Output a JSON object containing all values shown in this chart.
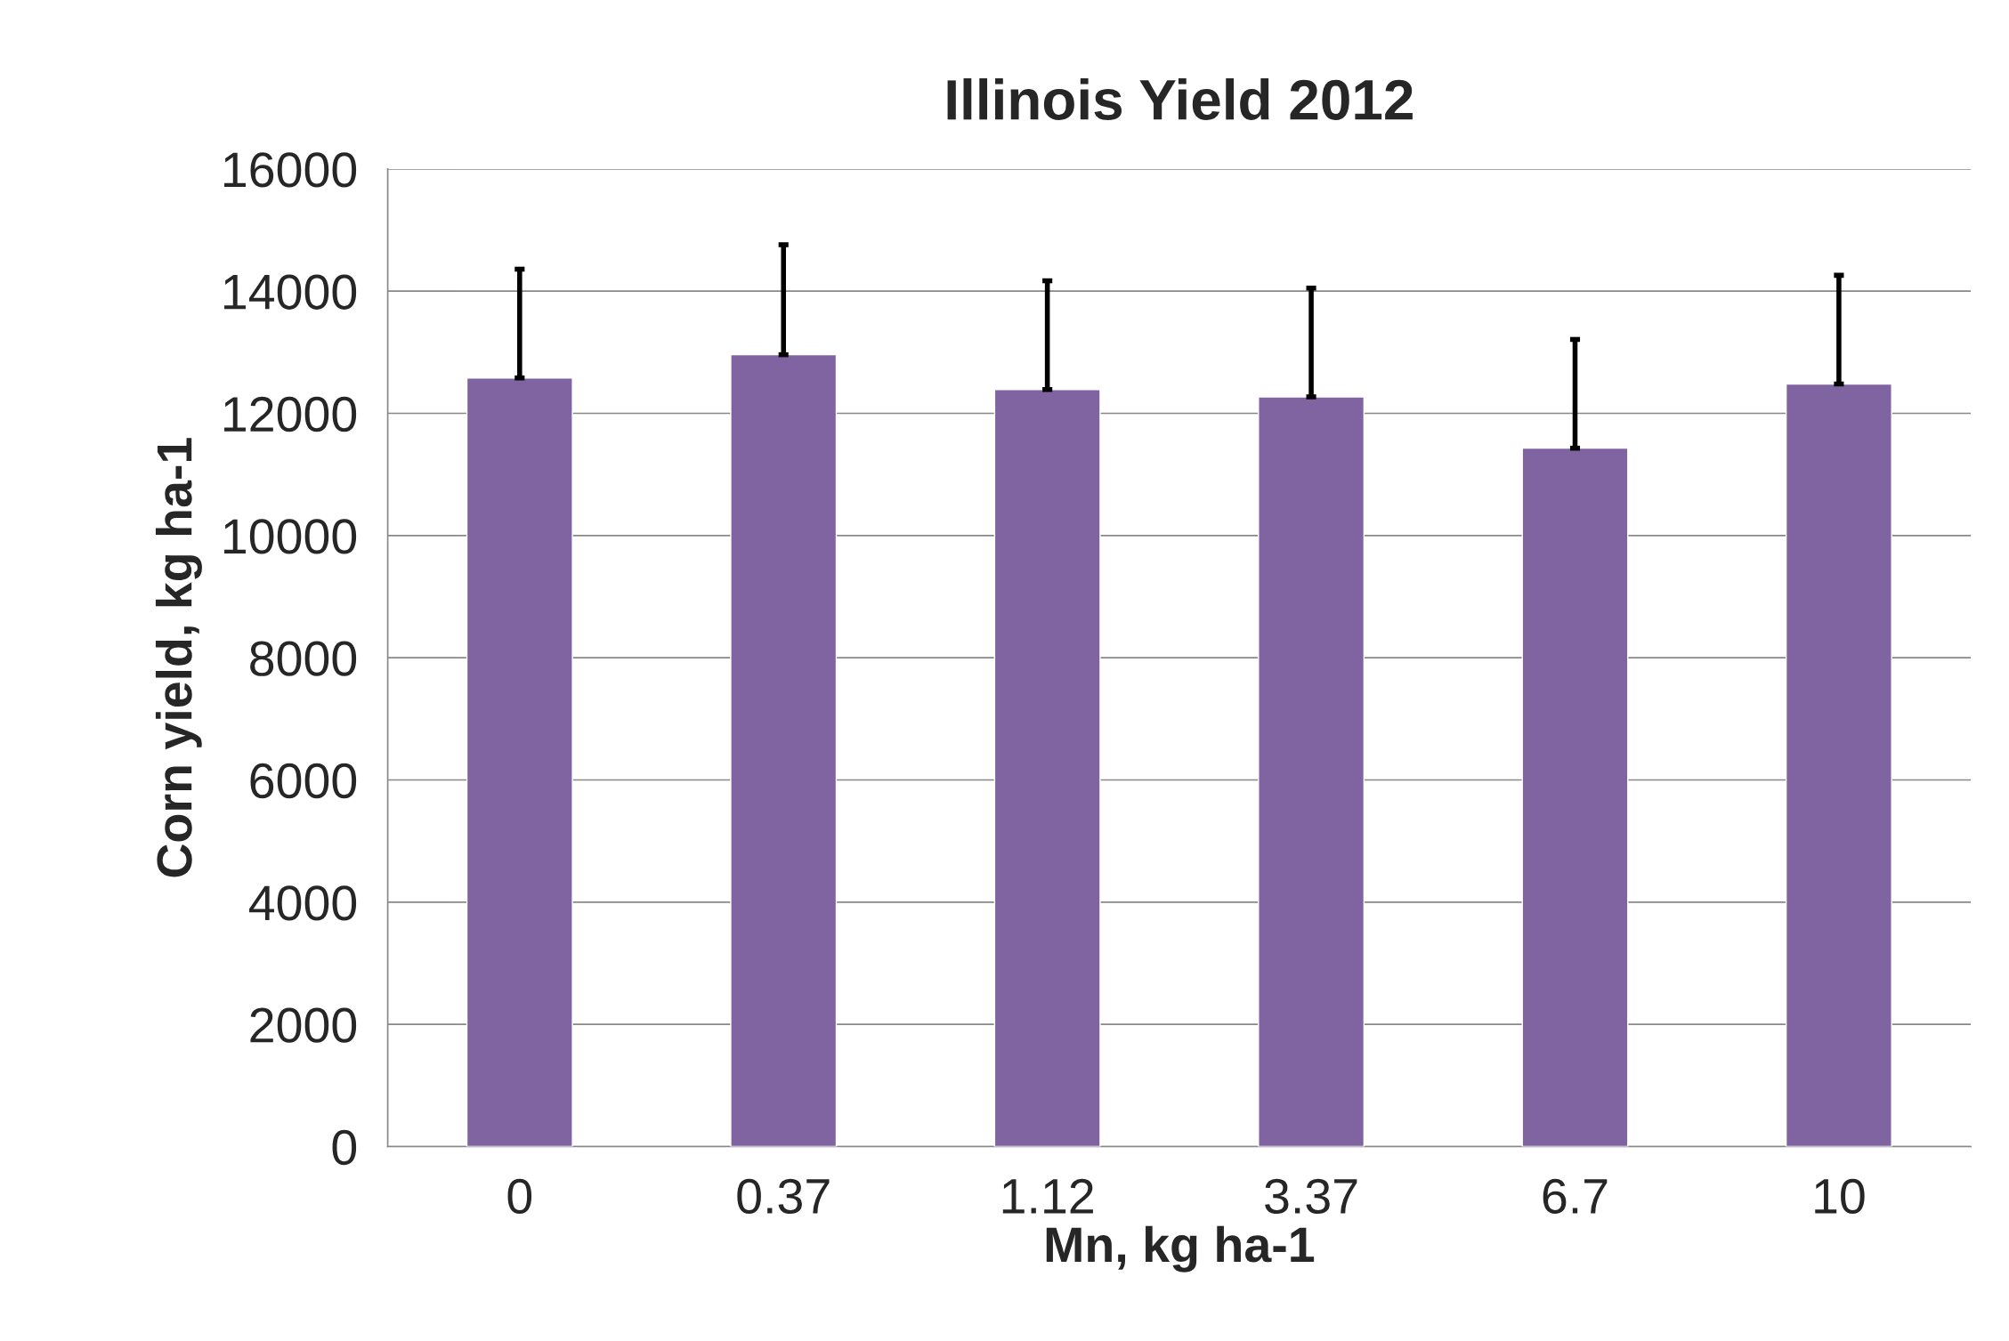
{
  "chart_data": {
    "type": "bar",
    "title": "Illinois Yield 2012",
    "xlabel": "Mn, kg ha-1",
    "ylabel": "Corn yield, kg ha-1",
    "categories": [
      "0",
      "0.37",
      "1.12",
      "3.37",
      "6.7",
      "10"
    ],
    "values": [
      12580,
      12960,
      12390,
      12270,
      11430,
      12480
    ],
    "errors": [
      [
        12580,
        14360
      ],
      [
        12960,
        14760
      ],
      [
        12390,
        14170
      ],
      [
        12270,
        14050
      ],
      [
        11430,
        13210
      ],
      [
        12480,
        14260
      ]
    ],
    "color": "#8064a2",
    "ylim": [
      0,
      16000
    ],
    "yticks": [
      0,
      2000,
      4000,
      6000,
      8000,
      10000,
      12000,
      14000,
      16000
    ],
    "grid": "y",
    "legend": false
  }
}
